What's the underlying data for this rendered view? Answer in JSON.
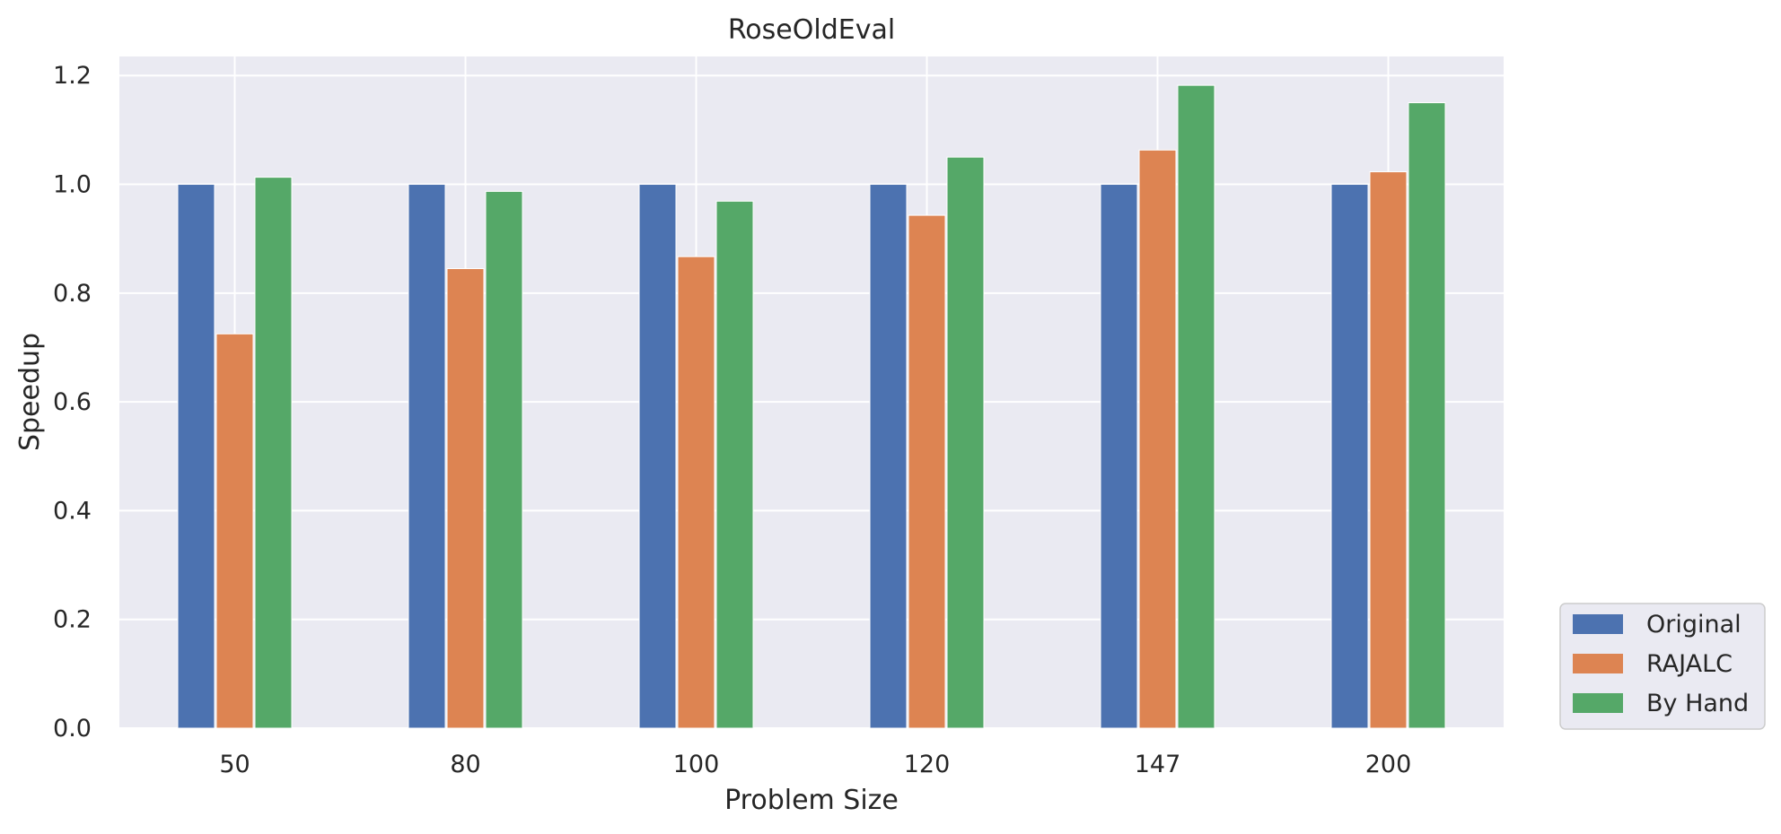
{
  "chart_data": {
    "type": "bar",
    "title": "RoseOldEval",
    "xlabel": "Problem Size",
    "ylabel": "Speedup",
    "categories": [
      "50",
      "80",
      "100",
      "120",
      "147",
      "200"
    ],
    "series": [
      {
        "name": "Original",
        "color": "#4c72b0",
        "values": [
          1.0,
          1.0,
          1.0,
          1.0,
          1.0,
          1.0
        ]
      },
      {
        "name": "RAJALC",
        "color": "#dd8452",
        "values": [
          0.725,
          0.845,
          0.867,
          0.943,
          1.063,
          1.023
        ]
      },
      {
        "name": "By Hand",
        "color": "#55a868",
        "values": [
          1.013,
          0.987,
          0.969,
          1.05,
          1.182,
          1.15
        ]
      }
    ],
    "ylim": [
      0,
      1.235
    ],
    "yticks": [
      "0.0",
      "0.2",
      "0.4",
      "0.6",
      "0.8",
      "1.0",
      "1.2"
    ],
    "grid": true,
    "legend_position": "bottom-right outside",
    "background_color": "#eaeaf2",
    "grid_color": "#ffffff"
  }
}
